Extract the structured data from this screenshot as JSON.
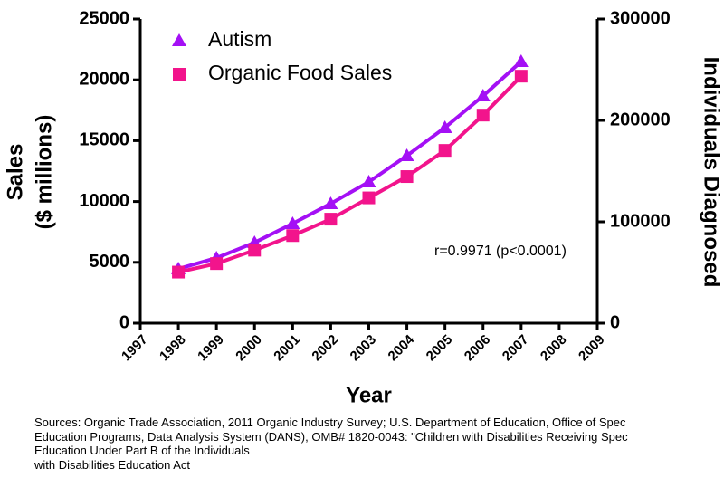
{
  "chart_data": {
    "type": "line",
    "x": [
      1998,
      1999,
      2000,
      2001,
      2002,
      2003,
      2004,
      2005,
      2006,
      2007
    ],
    "xlim": [
      1997,
      2009
    ],
    "xticks": [
      1997,
      1998,
      1999,
      2000,
      2001,
      2002,
      2003,
      2004,
      2005,
      2006,
      2007,
      2008,
      2009
    ],
    "ylim": [
      0,
      25000
    ],
    "yticks": [
      0,
      5000,
      10000,
      15000,
      20000,
      25000
    ],
    "y2lim": [
      0,
      300000
    ],
    "y2ticks": [
      0,
      100000,
      200000,
      300000
    ],
    "xlabel": "Year",
    "ylabel": [
      "Sales",
      "($ millions)"
    ],
    "y2label": "Individuals Diagnosed",
    "annotation": "r=0.9971 (p<0.0001)",
    "legend": "upper left",
    "series": [
      {
        "name": "Autism",
        "color": "#a410f5",
        "marker": "triangle",
        "axis": "y2",
        "values": [
          53600,
          64300,
          79500,
          98200,
          117900,
          139300,
          165200,
          192900,
          224100,
          258000
        ]
      },
      {
        "name": "Organic Food Sales",
        "color": "#f2148c",
        "marker": "square",
        "axis": "y",
        "values": [
          4200,
          4900,
          6000,
          7200,
          8550,
          10300,
          12050,
          14200,
          17100,
          20300
        ]
      }
    ]
  },
  "notes": [
    "Sources: Organic Trade Association,  2011 Organic Industry Survey; U.S. Department of Education, Office of Spec",
    "Education Programs, Data Analysis System (DANS), OMB# 1820-0043: \"Children with Disabilities Receiving Spec",
    "Education Under Part B of the Individuals",
    "with Disabilities Education Act"
  ]
}
